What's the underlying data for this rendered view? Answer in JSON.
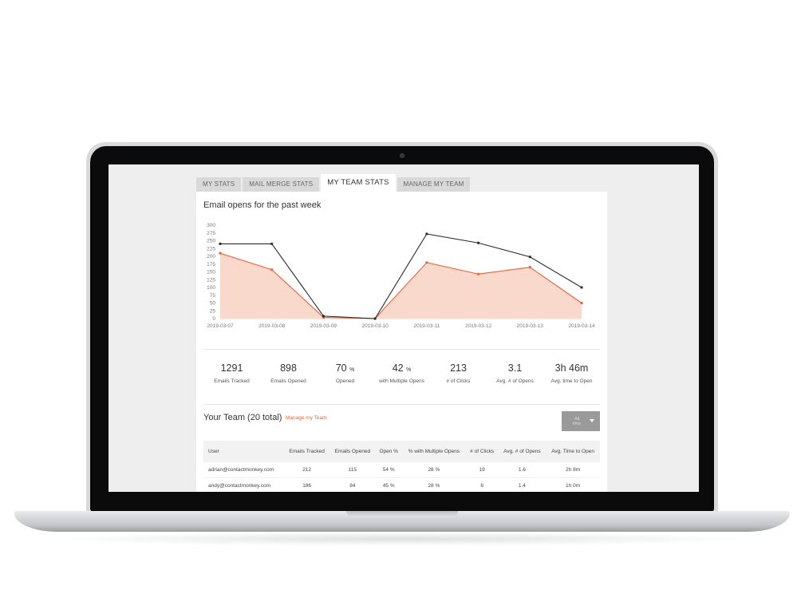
{
  "tabs": [
    {
      "label": "MY STATS"
    },
    {
      "label": "MAIL MERGE STATS"
    },
    {
      "label": "MY TEAM STATS"
    },
    {
      "label": "MANAGE MY TEAM"
    }
  ],
  "chart_title": "Email opens for the past week",
  "chart_data": {
    "type": "area",
    "title": "Email opens for the past week",
    "xlabel": "",
    "ylabel": "",
    "x": [
      "2019-03-07",
      "2019-03-08",
      "2019-03-09",
      "2019-03-10",
      "2019-03-11",
      "2019-03-12",
      "2019-03-13",
      "2019-03-14"
    ],
    "yticks": [
      "300",
      "275",
      "250",
      "225",
      "200",
      "175",
      "150",
      "125",
      "100",
      "75",
      "50",
      "25",
      "0"
    ],
    "ylim": [
      0,
      300
    ],
    "grid": false,
    "legend": "none",
    "series": [
      {
        "values": [
          240,
          240,
          8,
          0,
          272,
          243,
          198,
          100
        ],
        "color": "#2b2b2b",
        "style": "line"
      },
      {
        "values": [
          210,
          157,
          4,
          0,
          180,
          143,
          165,
          50
        ],
        "color": "#e8613c",
        "fill": "#fad9cd",
        "style": "area"
      }
    ]
  },
  "stats": [
    {
      "value": "1291",
      "unit": "",
      "label": "Emails Tracked"
    },
    {
      "value": "898",
      "unit": "",
      "label": "Emails Opened"
    },
    {
      "value": "70",
      "unit": "%",
      "label": "Opened"
    },
    {
      "value": "42",
      "unit": "%",
      "label": "with Multiple Opens"
    },
    {
      "value": "213",
      "unit": "",
      "label": "# of Clicks"
    },
    {
      "value": "3.1",
      "unit": "",
      "label": "Avg. # of Opens"
    },
    {
      "value": "3h 46m",
      "unit": "",
      "label": "Avg. time to Open"
    }
  ],
  "team": {
    "title": "Your Team (20 total)",
    "manage_link": "Manage my Team",
    "filter_label": "All time",
    "columns": [
      "User",
      "Emails Tracked",
      "Emails Opened",
      "Open %",
      "% with Multiple Opens",
      "# of Clicks",
      "Avg. # of Opens",
      "Avg. Time to Open"
    ],
    "rows": [
      [
        "adrian@contactmonkey.com",
        "212",
        "115",
        "54 %",
        "28 %",
        "19",
        "1.6",
        "2h 8m"
      ],
      [
        "andy@contactmonkey.com",
        "186",
        "84",
        "45 %",
        "28 %",
        "6",
        "1.4",
        "1h 0m"
      ]
    ]
  },
  "colors": {
    "accent": "#e8613c",
    "area_fill": "#fad9cd",
    "line_dark": "#2b2b2b"
  }
}
